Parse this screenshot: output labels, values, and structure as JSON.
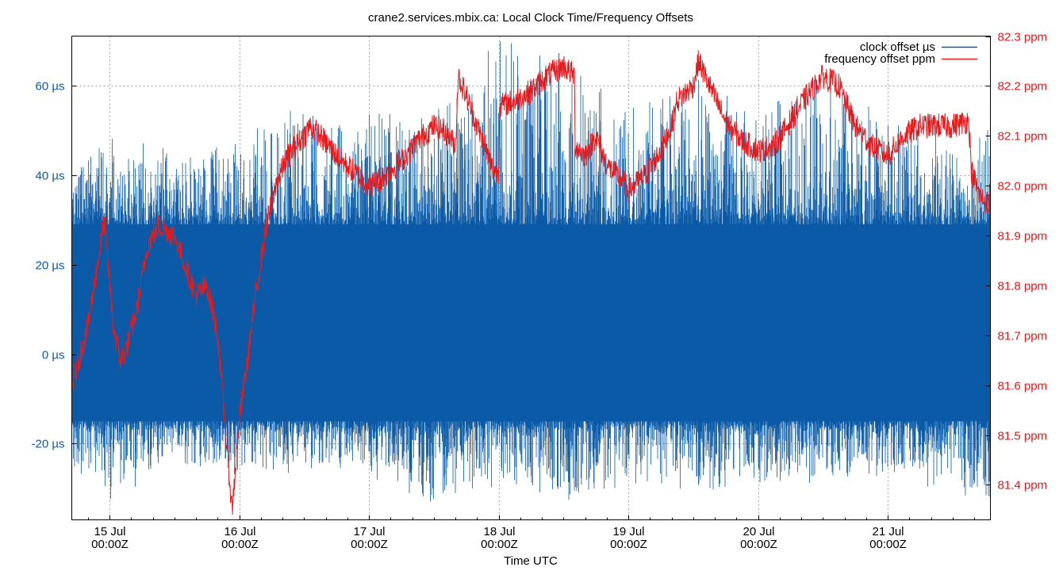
{
  "chart_data": {
    "type": "line",
    "title": "crane2.services.mbix.ca: Local Clock Time/Frequency Offsets",
    "xlabel": "Time UTC",
    "x_range": [
      "2023-07-14T17:00Z",
      "2023-07-21T19:00Z"
    ],
    "x_ticks": [
      {
        "t": "2023-07-15T00:00Z",
        "day": "15 Jul",
        "time": "00:00Z"
      },
      {
        "t": "2023-07-16T00:00Z",
        "day": "16 Jul",
        "time": "00:00Z"
      },
      {
        "t": "2023-07-17T00:00Z",
        "day": "17 Jul",
        "time": "00:00Z"
      },
      {
        "t": "2023-07-18T00:00Z",
        "day": "18 Jul",
        "time": "00:00Z"
      },
      {
        "t": "2023-07-19T00:00Z",
        "day": "19 Jul",
        "time": "00:00Z"
      },
      {
        "t": "2023-07-20T00:00Z",
        "day": "20 Jul",
        "time": "00:00Z"
      },
      {
        "t": "2023-07-21T00:00Z",
        "day": "21 Jul",
        "time": "00:00Z"
      }
    ],
    "y_left": {
      "range": [
        -37,
        71
      ],
      "ticks": [
        {
          "v": -20,
          "label": "-20 µs"
        },
        {
          "v": 0,
          "label": "0 µs"
        },
        {
          "v": 20,
          "label": "20 µs"
        },
        {
          "v": 40,
          "label": "40 µs"
        },
        {
          "v": 60,
          "label": "60 µs"
        }
      ]
    },
    "y_right": {
      "range": [
        81.33,
        82.3
      ],
      "ticks": [
        {
          "v": 81.4,
          "label": "81.4 ppm"
        },
        {
          "v": 81.5,
          "label": "81.5 ppm"
        },
        {
          "v": 81.6,
          "label": "81.6 ppm"
        },
        {
          "v": 81.7,
          "label": "81.7 ppm"
        },
        {
          "v": 81.8,
          "label": "81.8 ppm"
        },
        {
          "v": 81.9,
          "label": "81.9 ppm"
        },
        {
          "v": 82.0,
          "label": "82.0 ppm"
        },
        {
          "v": 82.1,
          "label": "82.1 ppm"
        },
        {
          "v": 82.2,
          "label": "82.2 ppm"
        },
        {
          "v": 82.3,
          "label": "82.3 ppm"
        }
      ]
    },
    "grid": true,
    "legend_position": "top-right",
    "series": [
      {
        "name": "clock offset µs",
        "axis": "left",
        "color": "#0a5aa8",
        "typical_band": [
          -15,
          29
        ],
        "extreme_range": [
          -37,
          70
        ],
        "points": [
          [
            "2023-07-14T17:00Z",
            -14,
            30,
            -27,
            45
          ],
          [
            "2023-07-15T00:00Z",
            -15,
            30,
            -32,
            48
          ],
          [
            "2023-07-15T12:00Z",
            -15,
            29,
            -25,
            44
          ],
          [
            "2023-07-16T00:00Z",
            -15,
            29,
            -27,
            47
          ],
          [
            "2023-07-16T12:00Z",
            -15,
            29,
            -26,
            56
          ],
          [
            "2023-07-17T00:00Z",
            -15,
            29,
            -26,
            53
          ],
          [
            "2023-07-17T12:00Z",
            -15,
            29,
            -34,
            54
          ],
          [
            "2023-07-18T00:00Z",
            -15,
            29,
            -28,
            70
          ],
          [
            "2023-07-18T12:00Z",
            -15,
            29,
            -32,
            66
          ],
          [
            "2023-07-19T00:00Z",
            -15,
            29,
            -29,
            55
          ],
          [
            "2023-07-19T12:00Z",
            -15,
            29,
            -30,
            60
          ],
          [
            "2023-07-20T00:00Z",
            -15,
            29,
            -28,
            55
          ],
          [
            "2023-07-20T12:00Z",
            -15,
            29,
            -28,
            62
          ],
          [
            "2023-07-21T00:00Z",
            -15,
            29,
            -27,
            52
          ],
          [
            "2023-07-21T19:00Z",
            -15,
            29,
            -33,
            49
          ]
        ]
      },
      {
        "name": "frequency offset ppm",
        "axis": "right",
        "color": "#e41a1c",
        "points": [
          [
            "2023-07-14T17:00Z",
            81.6
          ],
          [
            "2023-07-14T20:00Z",
            81.72
          ],
          [
            "2023-07-14T23:00Z",
            81.93
          ],
          [
            "2023-07-15T00:40Z",
            81.72
          ],
          [
            "2023-07-15T02:00Z",
            81.65
          ],
          [
            "2023-07-15T03:00Z",
            81.67
          ],
          [
            "2023-07-15T05:00Z",
            81.75
          ],
          [
            "2023-07-15T07:00Z",
            81.88
          ],
          [
            "2023-07-15T09:00Z",
            81.92
          ],
          [
            "2023-07-15T12:00Z",
            81.9
          ],
          [
            "2023-07-15T14:00Z",
            81.84
          ],
          [
            "2023-07-15T16:00Z",
            81.78
          ],
          [
            "2023-07-15T18:00Z",
            81.8
          ],
          [
            "2023-07-15T20:00Z",
            81.7
          ],
          [
            "2023-07-15T21:30Z",
            81.5
          ],
          [
            "2023-07-15T22:40Z",
            81.35
          ],
          [
            "2023-07-16T00:00Z",
            81.53
          ],
          [
            "2023-07-16T01:30Z",
            81.65
          ],
          [
            "2023-07-16T03:00Z",
            81.78
          ],
          [
            "2023-07-16T05:00Z",
            81.92
          ],
          [
            "2023-07-16T07:00Z",
            82.01
          ],
          [
            "2023-07-16T09:00Z",
            82.06
          ],
          [
            "2023-07-16T12:00Z",
            82.1
          ],
          [
            "2023-07-16T13:00Z",
            82.12
          ],
          [
            "2023-07-16T15:00Z",
            82.1
          ],
          [
            "2023-07-16T18:00Z",
            82.06
          ],
          [
            "2023-07-16T21:00Z",
            82.03
          ],
          [
            "2023-07-17T00:00Z",
            82.0
          ],
          [
            "2023-07-17T03:00Z",
            82.02
          ],
          [
            "2023-07-17T06:00Z",
            82.05
          ],
          [
            "2023-07-17T09:00Z",
            82.09
          ],
          [
            "2023-07-17T12:00Z",
            82.12
          ],
          [
            "2023-07-17T14:00Z",
            82.11
          ],
          [
            "2023-07-17T16:00Z",
            82.08
          ],
          [
            "2023-07-17T16:30Z",
            82.22
          ],
          [
            "2023-07-17T18:00Z",
            82.18
          ],
          [
            "2023-07-17T20:00Z",
            82.12
          ],
          [
            "2023-07-17T22:00Z",
            82.06
          ],
          [
            "2023-07-17T23:00Z",
            82.03
          ],
          [
            "2023-07-18T00:00Z",
            82.03
          ],
          [
            "2023-07-18T00:10Z",
            82.16
          ],
          [
            "2023-07-18T03:00Z",
            82.17
          ],
          [
            "2023-07-18T06:00Z",
            82.19
          ],
          [
            "2023-07-18T09:00Z",
            82.22
          ],
          [
            "2023-07-18T12:00Z",
            82.24
          ],
          [
            "2023-07-18T14:00Z",
            82.22
          ],
          [
            "2023-07-18T14:10Z",
            82.08
          ],
          [
            "2023-07-18T16:00Z",
            82.06
          ],
          [
            "2023-07-18T18:00Z",
            82.1
          ],
          [
            "2023-07-18T20:00Z",
            82.04
          ],
          [
            "2023-07-18T23:00Z",
            82.01
          ],
          [
            "2023-07-19T00:00Z",
            81.99
          ],
          [
            "2023-07-19T03:00Z",
            82.02
          ],
          [
            "2023-07-19T06:00Z",
            82.07
          ],
          [
            "2023-07-19T08:00Z",
            82.12
          ],
          [
            "2023-07-19T09:00Z",
            82.17
          ],
          [
            "2023-07-19T12:00Z",
            82.2
          ],
          [
            "2023-07-19T13:00Z",
            82.25
          ],
          [
            "2023-07-19T15:00Z",
            82.2
          ],
          [
            "2023-07-19T18:00Z",
            82.13
          ],
          [
            "2023-07-19T21:00Z",
            82.09
          ],
          [
            "2023-07-20T00:00Z",
            82.07
          ],
          [
            "2023-07-20T03:00Z",
            82.08
          ],
          [
            "2023-07-20T06:00Z",
            82.13
          ],
          [
            "2023-07-20T09:00Z",
            82.18
          ],
          [
            "2023-07-20T12:00Z",
            82.22
          ],
          [
            "2023-07-20T15:00Z",
            82.2
          ],
          [
            "2023-07-20T18:00Z",
            82.12
          ],
          [
            "2023-07-20T21:00Z",
            82.08
          ],
          [
            "2023-07-21T00:00Z",
            82.06
          ],
          [
            "2023-07-21T03:00Z",
            82.1
          ],
          [
            "2023-07-21T06:00Z",
            82.12
          ],
          [
            "2023-07-21T09:00Z",
            82.12
          ],
          [
            "2023-07-21T12:00Z",
            82.12
          ],
          [
            "2023-07-21T15:00Z",
            82.13
          ],
          [
            "2023-07-21T15:30Z",
            82.03
          ],
          [
            "2023-07-21T17:00Z",
            81.98
          ],
          [
            "2023-07-21T19:00Z",
            81.96
          ]
        ]
      }
    ]
  }
}
